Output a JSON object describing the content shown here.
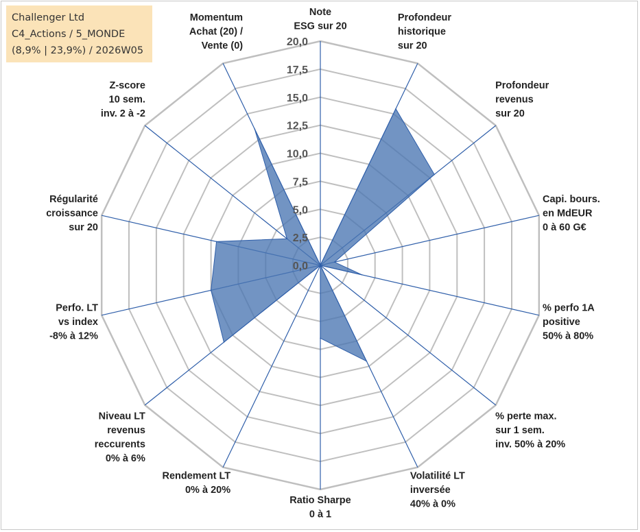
{
  "header": {
    "lines": [
      "Challenger Ltd",
      "C4_Actions / 5_MONDE",
      "(8,9% | 23,9%) / 2026W05"
    ]
  },
  "colors": {
    "fill": "#4a76b2",
    "spoke": "#2e5ea9",
    "grid": "#bfbfbf",
    "legend_bg": "#fbe3b8"
  },
  "chart_data": {
    "type": "radar",
    "title": "",
    "rmin": 0,
    "rmax": 20,
    "ticks": [
      "0,0",
      "2,5",
      "5,0",
      "7,5",
      "10,0",
      "12,5",
      "15,0",
      "17,5",
      "20,0"
    ],
    "axes": [
      [
        "Note",
        "ESG sur 20"
      ],
      [
        "Profondeur",
        "historique",
        "sur 20"
      ],
      [
        "Profondeur",
        "revenus",
        "sur 20"
      ],
      [
        "Capi. bours.",
        "en MdEUR",
        "0 à 60 G€"
      ],
      [
        "% perfo 1A",
        "positive",
        "50% à 80%"
      ],
      [
        "% perte max.",
        "sur 1 sem.",
        "inv. 50% à 20%"
      ],
      [
        "Volatilité LT",
        "inversée",
        "40% à 0%"
      ],
      [
        "Ratio Sharpe",
        "0 à 1"
      ],
      [
        "Rendement LT",
        "0% à 20%"
      ],
      [
        "Niveau LT",
        "revenus",
        "reccurents",
        "0% à 6%"
      ],
      [
        "Perfo. LT",
        "vs index",
        "-8% à 12%"
      ],
      [
        "Régularité",
        "croissance",
        "sur 20"
      ],
      [
        "Z-score",
        "10 sem.",
        "inv. 2 à -2"
      ],
      [
        "Momentum",
        "Achat (20) /",
        "Vente (0)"
      ]
    ],
    "series": [
      {
        "values": [
          0,
          15.5,
          13.0,
          1.3,
          3.8,
          0,
          9.5,
          6.5,
          0,
          11.0,
          10.0,
          9.5,
          3.8,
          13.5
        ]
      }
    ]
  }
}
